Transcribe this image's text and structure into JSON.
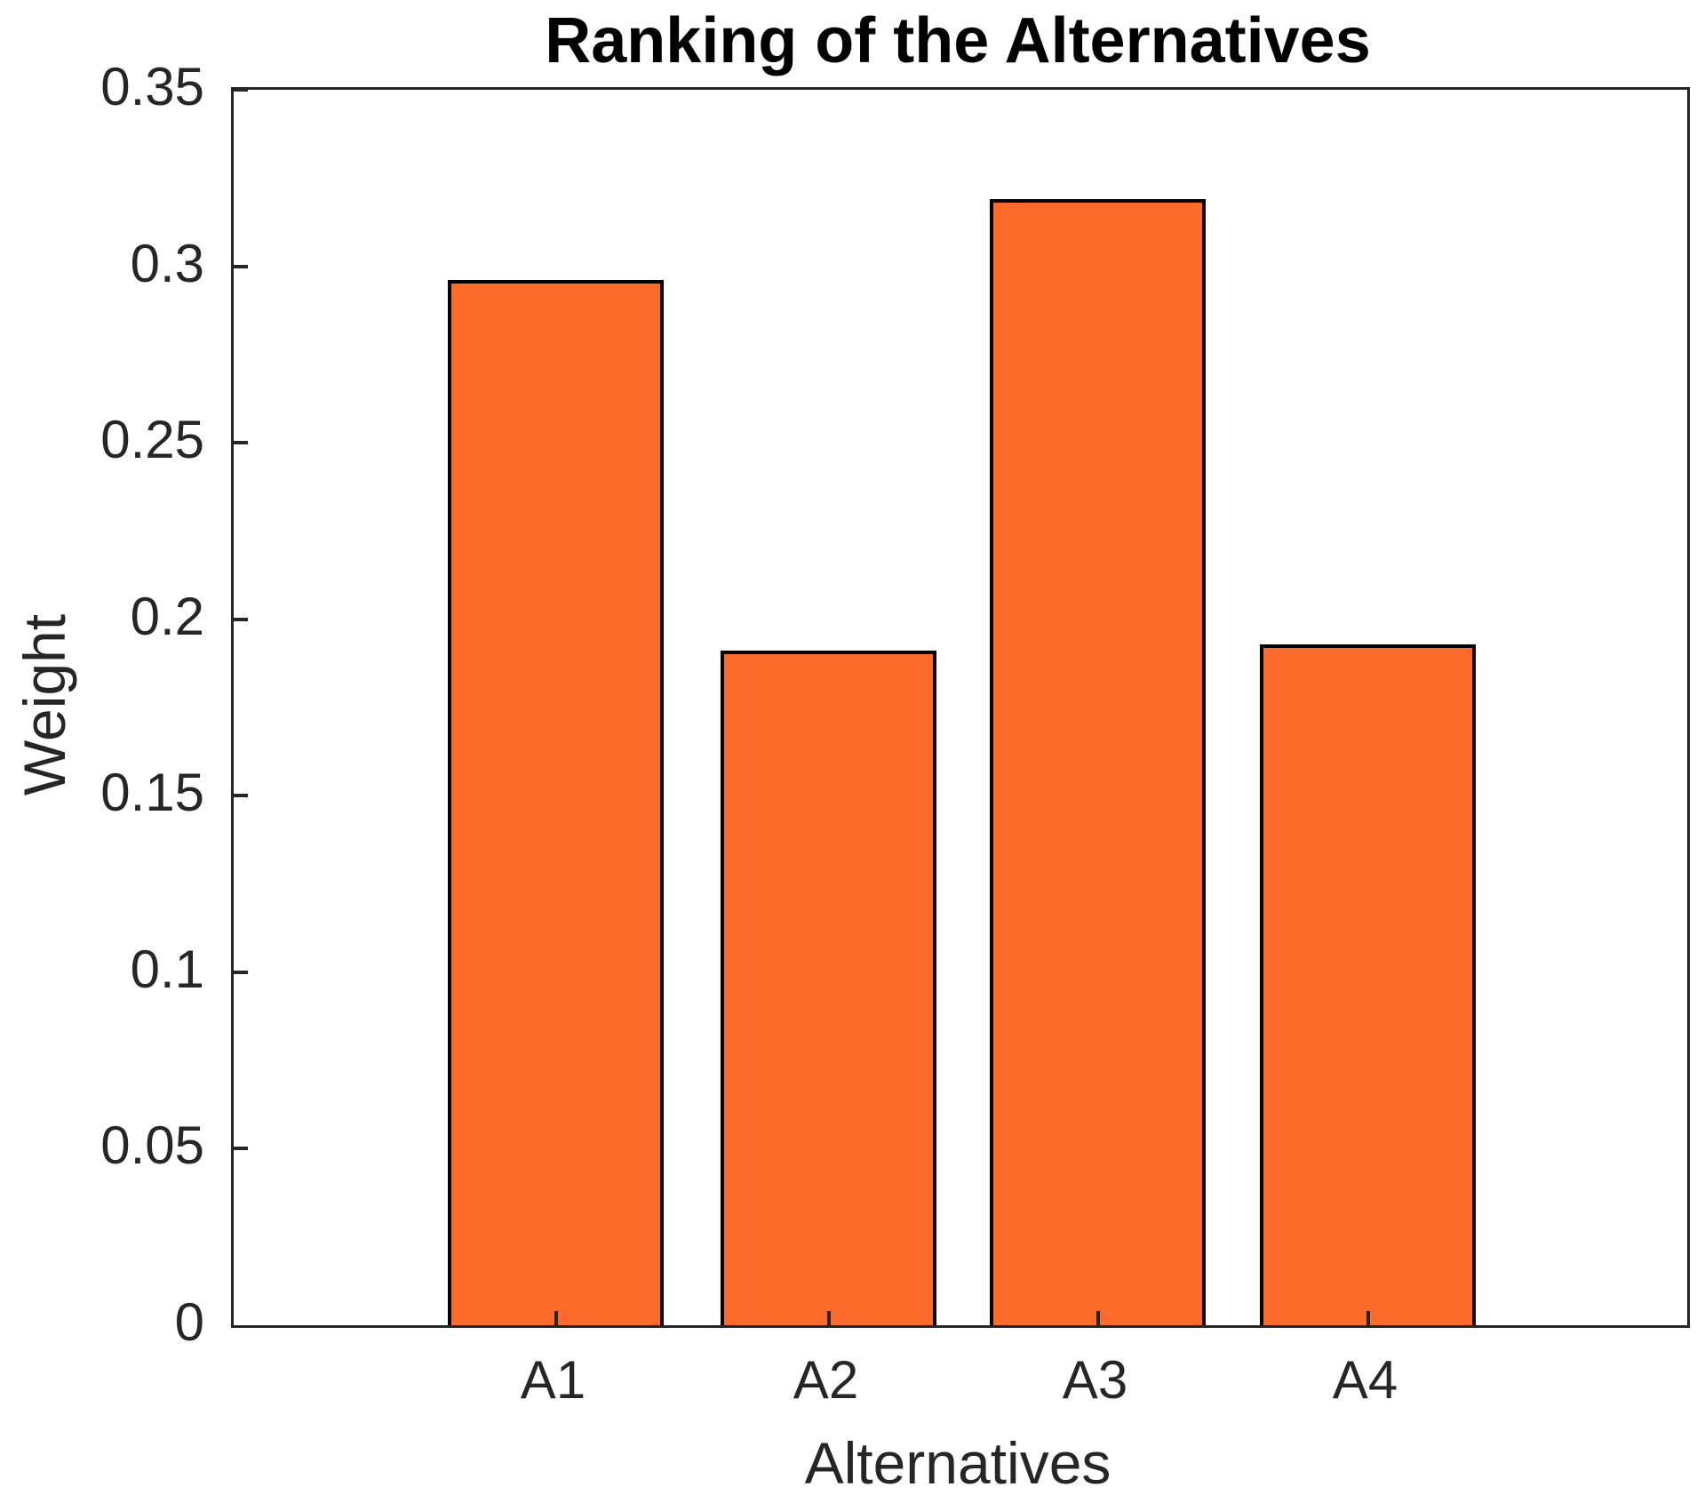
{
  "figure": {
    "kind": "matlab-style bar figure"
  },
  "colors": {
    "background": "#FFFFFF",
    "bar_fill": "#FC6B2A",
    "bar_edge": "#000000",
    "axis_line": "#262626",
    "tick_text": "#262626",
    "title_text": "#000000"
  },
  "chart_data": {
    "type": "bar",
    "title": "Ranking of the Alternatives",
    "xlabel": "Alternatives",
    "ylabel": "Weight",
    "categories": [
      "A1",
      "A2",
      "A3",
      "A4"
    ],
    "values": [
      0.296,
      0.191,
      0.319,
      0.193
    ],
    "ylim": [
      0,
      0.35
    ],
    "ytick_step": 0.05,
    "ytick_labels": [
      "0",
      "0.05",
      "0.1",
      "0.15",
      "0.2",
      "0.25",
      "0.3",
      "0.35"
    ],
    "grid": false,
    "legend": null,
    "box": true,
    "tick_direction": "in"
  }
}
